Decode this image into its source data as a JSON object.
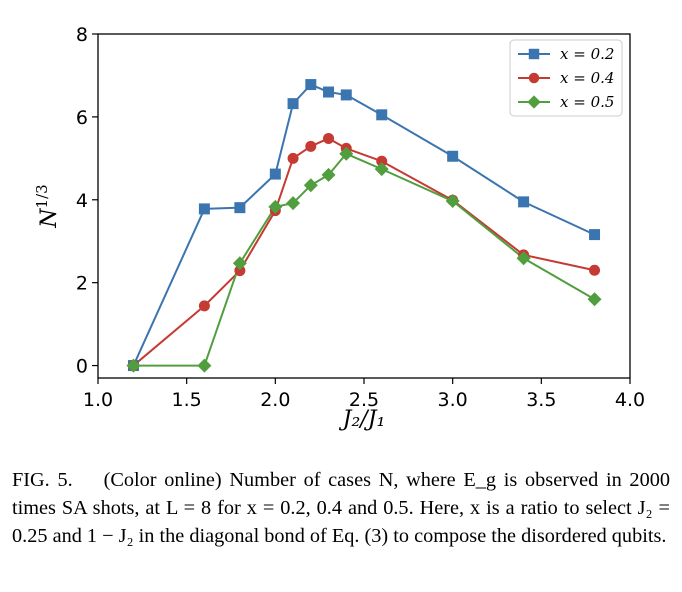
{
  "chart_data": {
    "type": "line",
    "xlabel": "J₂/J₁",
    "ylabel": "N^{1/3}",
    "xlim": [
      1.0,
      4.0
    ],
    "ylim": [
      -0.3,
      8.0
    ],
    "xticks": [
      "1.0",
      "1.5",
      "2.0",
      "2.5",
      "3.0",
      "3.5",
      "4.0"
    ],
    "yticks": [
      "0",
      "2",
      "4",
      "6",
      "8"
    ],
    "legend_position": "top-right",
    "series": [
      {
        "name": "x = 0.2",
        "color": "#3b75af",
        "marker": "square",
        "x": [
          1.2,
          1.6,
          1.8,
          2.0,
          2.1,
          2.2,
          2.3,
          2.4,
          2.6,
          3.0,
          3.4,
          3.8
        ],
        "y": [
          0.0,
          3.78,
          3.81,
          4.62,
          6.32,
          6.78,
          6.6,
          6.53,
          6.05,
          5.05,
          3.95,
          3.16
        ]
      },
      {
        "name": "x = 0.4",
        "color": "#c53a32",
        "marker": "circle",
        "x": [
          1.2,
          1.6,
          1.8,
          2.0,
          2.1,
          2.2,
          2.3,
          2.4,
          2.6,
          3.0,
          3.4,
          3.8
        ],
        "y": [
          0.0,
          1.44,
          2.29,
          3.74,
          5.0,
          5.29,
          5.48,
          5.24,
          4.93,
          3.99,
          2.67,
          2.3
        ]
      },
      {
        "name": "x = 0.5",
        "color": "#519e3e",
        "marker": "diamond",
        "x": [
          1.2,
          1.6,
          1.8,
          2.0,
          2.1,
          2.2,
          2.3,
          2.4,
          2.6,
          3.0,
          3.4,
          3.8
        ],
        "y": [
          0.0,
          0.0,
          2.47,
          3.83,
          3.92,
          4.35,
          4.6,
          5.11,
          4.74,
          3.97,
          2.59,
          1.6
        ]
      }
    ]
  },
  "caption": {
    "label": "FIG. 5.",
    "text": "(Color online) Number of cases N, where E_g is observed in 2000 times SA shots, at L = 8 for x = 0.2, 0.4 and 0.5. Here, x is a ratio to select J₂ = 0.25 and 1 − J₂ in the diagonal bond of Eq. (3) to compose the disordered qubits."
  }
}
